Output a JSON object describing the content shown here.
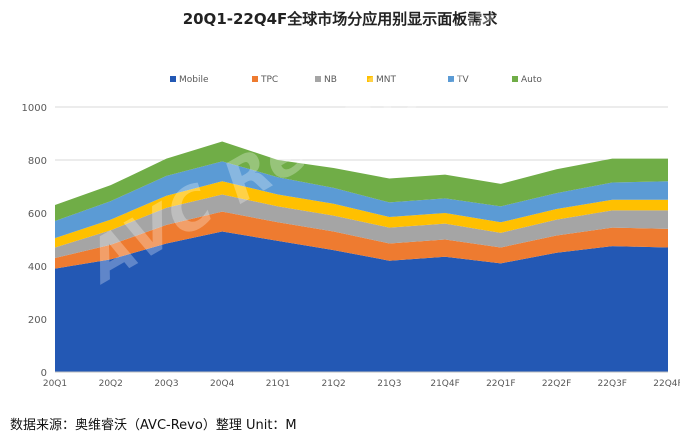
{
  "title": "20Q1-22Q4F全球市场分应用别显示面板需求",
  "source_note": "数据来源：奥维睿沃（AVC-Revo）整理   Unit：M",
  "watermark": "AVC Revo|奥维睿沃",
  "colors": {
    "Mobile": "#2358B4",
    "TPC": "#EE7B30",
    "NB": "#A5A5A5",
    "MNT": "#FFC000",
    "TV": "#5B9BD5",
    "Auto": "#70AD47",
    "grid": "#d9d9d9",
    "axis_text": "#595959"
  },
  "chart_data": {
    "type": "area",
    "stacked": true,
    "title": "20Q1-22Q4F全球市场分应用别显示面板需求",
    "xlabel": "",
    "ylabel": "",
    "unit": "M",
    "ylim": [
      0,
      1000
    ],
    "yticks": [
      0,
      200,
      400,
      600,
      800,
      1000
    ],
    "grid": true,
    "legend_position": "top",
    "categories": [
      "20Q1",
      "20Q2",
      "20Q3",
      "20Q4",
      "21Q1",
      "21Q2",
      "21Q3",
      "21Q4F",
      "22Q1F",
      "22Q2F",
      "22Q3F",
      "22Q4F"
    ],
    "series": [
      {
        "name": "Mobile",
        "values": [
          390,
          425,
          485,
          530,
          495,
          460,
          420,
          435,
          410,
          450,
          475,
          470
        ]
      },
      {
        "name": "TPC",
        "values": [
          40,
          55,
          70,
          75,
          70,
          70,
          65,
          65,
          60,
          65,
          70,
          70
        ]
      },
      {
        "name": "NB",
        "values": [
          40,
          55,
          65,
          65,
          60,
          60,
          60,
          60,
          55,
          60,
          65,
          70
        ]
      },
      {
        "name": "MNT",
        "values": [
          35,
          40,
          45,
          50,
          45,
          45,
          40,
          40,
          40,
          40,
          40,
          40
        ]
      },
      {
        "name": "TV",
        "values": [
          65,
          70,
          75,
          75,
          65,
          60,
          55,
          55,
          60,
          60,
          65,
          70
        ]
      },
      {
        "name": "Auto",
        "values": [
          60,
          60,
          65,
          75,
          65,
          75,
          90,
          90,
          85,
          90,
          90,
          85
        ]
      }
    ]
  }
}
